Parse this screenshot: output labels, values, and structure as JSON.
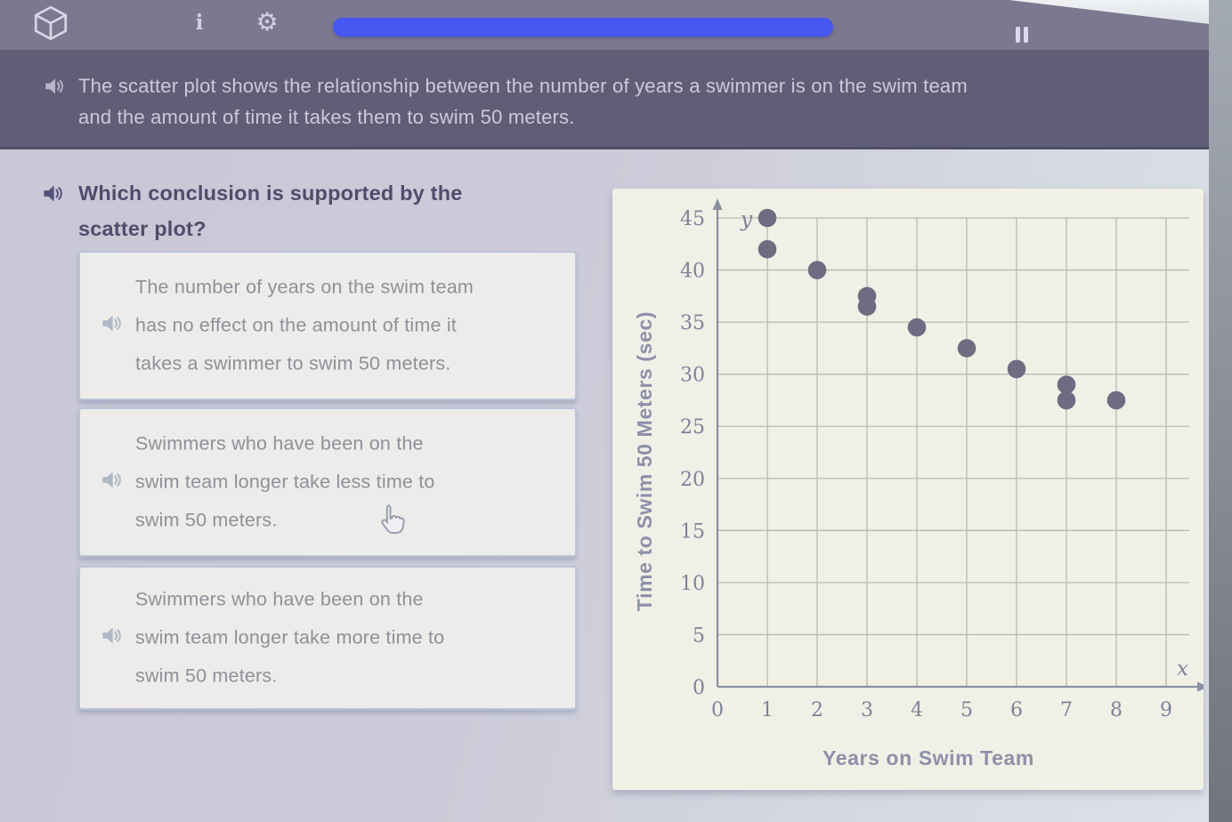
{
  "header": {
    "logo_icon": "cube-3d-icon",
    "info_glyph": "i",
    "settings_icon": "gear-icon",
    "settings_glyph": "⚙",
    "pause_icon": "pause-icon",
    "progress_color": "#4656f0"
  },
  "intro": {
    "speaker_icon": "speaker-icon",
    "text": "The scatter plot shows the relationship between the number of years a swimmer is on the swim team\nand the amount of time it takes them to swim 50 meters."
  },
  "question": {
    "speaker_icon": "speaker-icon",
    "prompt": "Which conclusion is supported by the\nscatter plot?"
  },
  "answers": [
    {
      "speaker_icon": "speaker-icon",
      "text": "The number of years on the swim team\nhas no effect on the amount of time it\ntakes a swimmer to swim 50 meters."
    },
    {
      "speaker_icon": "speaker-icon",
      "text": "Swimmers who have been on the\nswim team longer take less time to\nswim 50 meters."
    },
    {
      "speaker_icon": "speaker-icon",
      "text": "Swimmers who have been on the\nswim team longer take more time to\nswim 50 meters."
    }
  ],
  "chart_data": {
    "type": "scatter",
    "title": "",
    "xlabel": "Years on Swim Team",
    "ylabel": "Time to Swim 50 Meters (sec)",
    "x_axis_symbol": "x",
    "y_axis_symbol": "y",
    "xlim": [
      0,
      9
    ],
    "ylim": [
      0,
      45
    ],
    "x_ticks": [
      0,
      1,
      2,
      3,
      4,
      5,
      6,
      7,
      8,
      9
    ],
    "y_ticks": [
      0,
      5,
      10,
      15,
      20,
      25,
      30,
      35,
      40,
      45
    ],
    "grid": true,
    "legend": false,
    "point_color": "#6d6c80",
    "points": [
      [
        1,
        45
      ],
      [
        1,
        42
      ],
      [
        2,
        40
      ],
      [
        3,
        37.5
      ],
      [
        3,
        36.5
      ],
      [
        4,
        34.5
      ],
      [
        5,
        32.5
      ],
      [
        6,
        30.5
      ],
      [
        7,
        29
      ],
      [
        7,
        27.5
      ],
      [
        8,
        27.5
      ]
    ]
  },
  "colors": {
    "accent_blue": "#4656f0",
    "header_bg": "#7b7890",
    "question_band_bg": "#605d77",
    "card_bg": "#edecea",
    "chart_bg": "#f1f0e7",
    "dot": "#6d6c80"
  }
}
